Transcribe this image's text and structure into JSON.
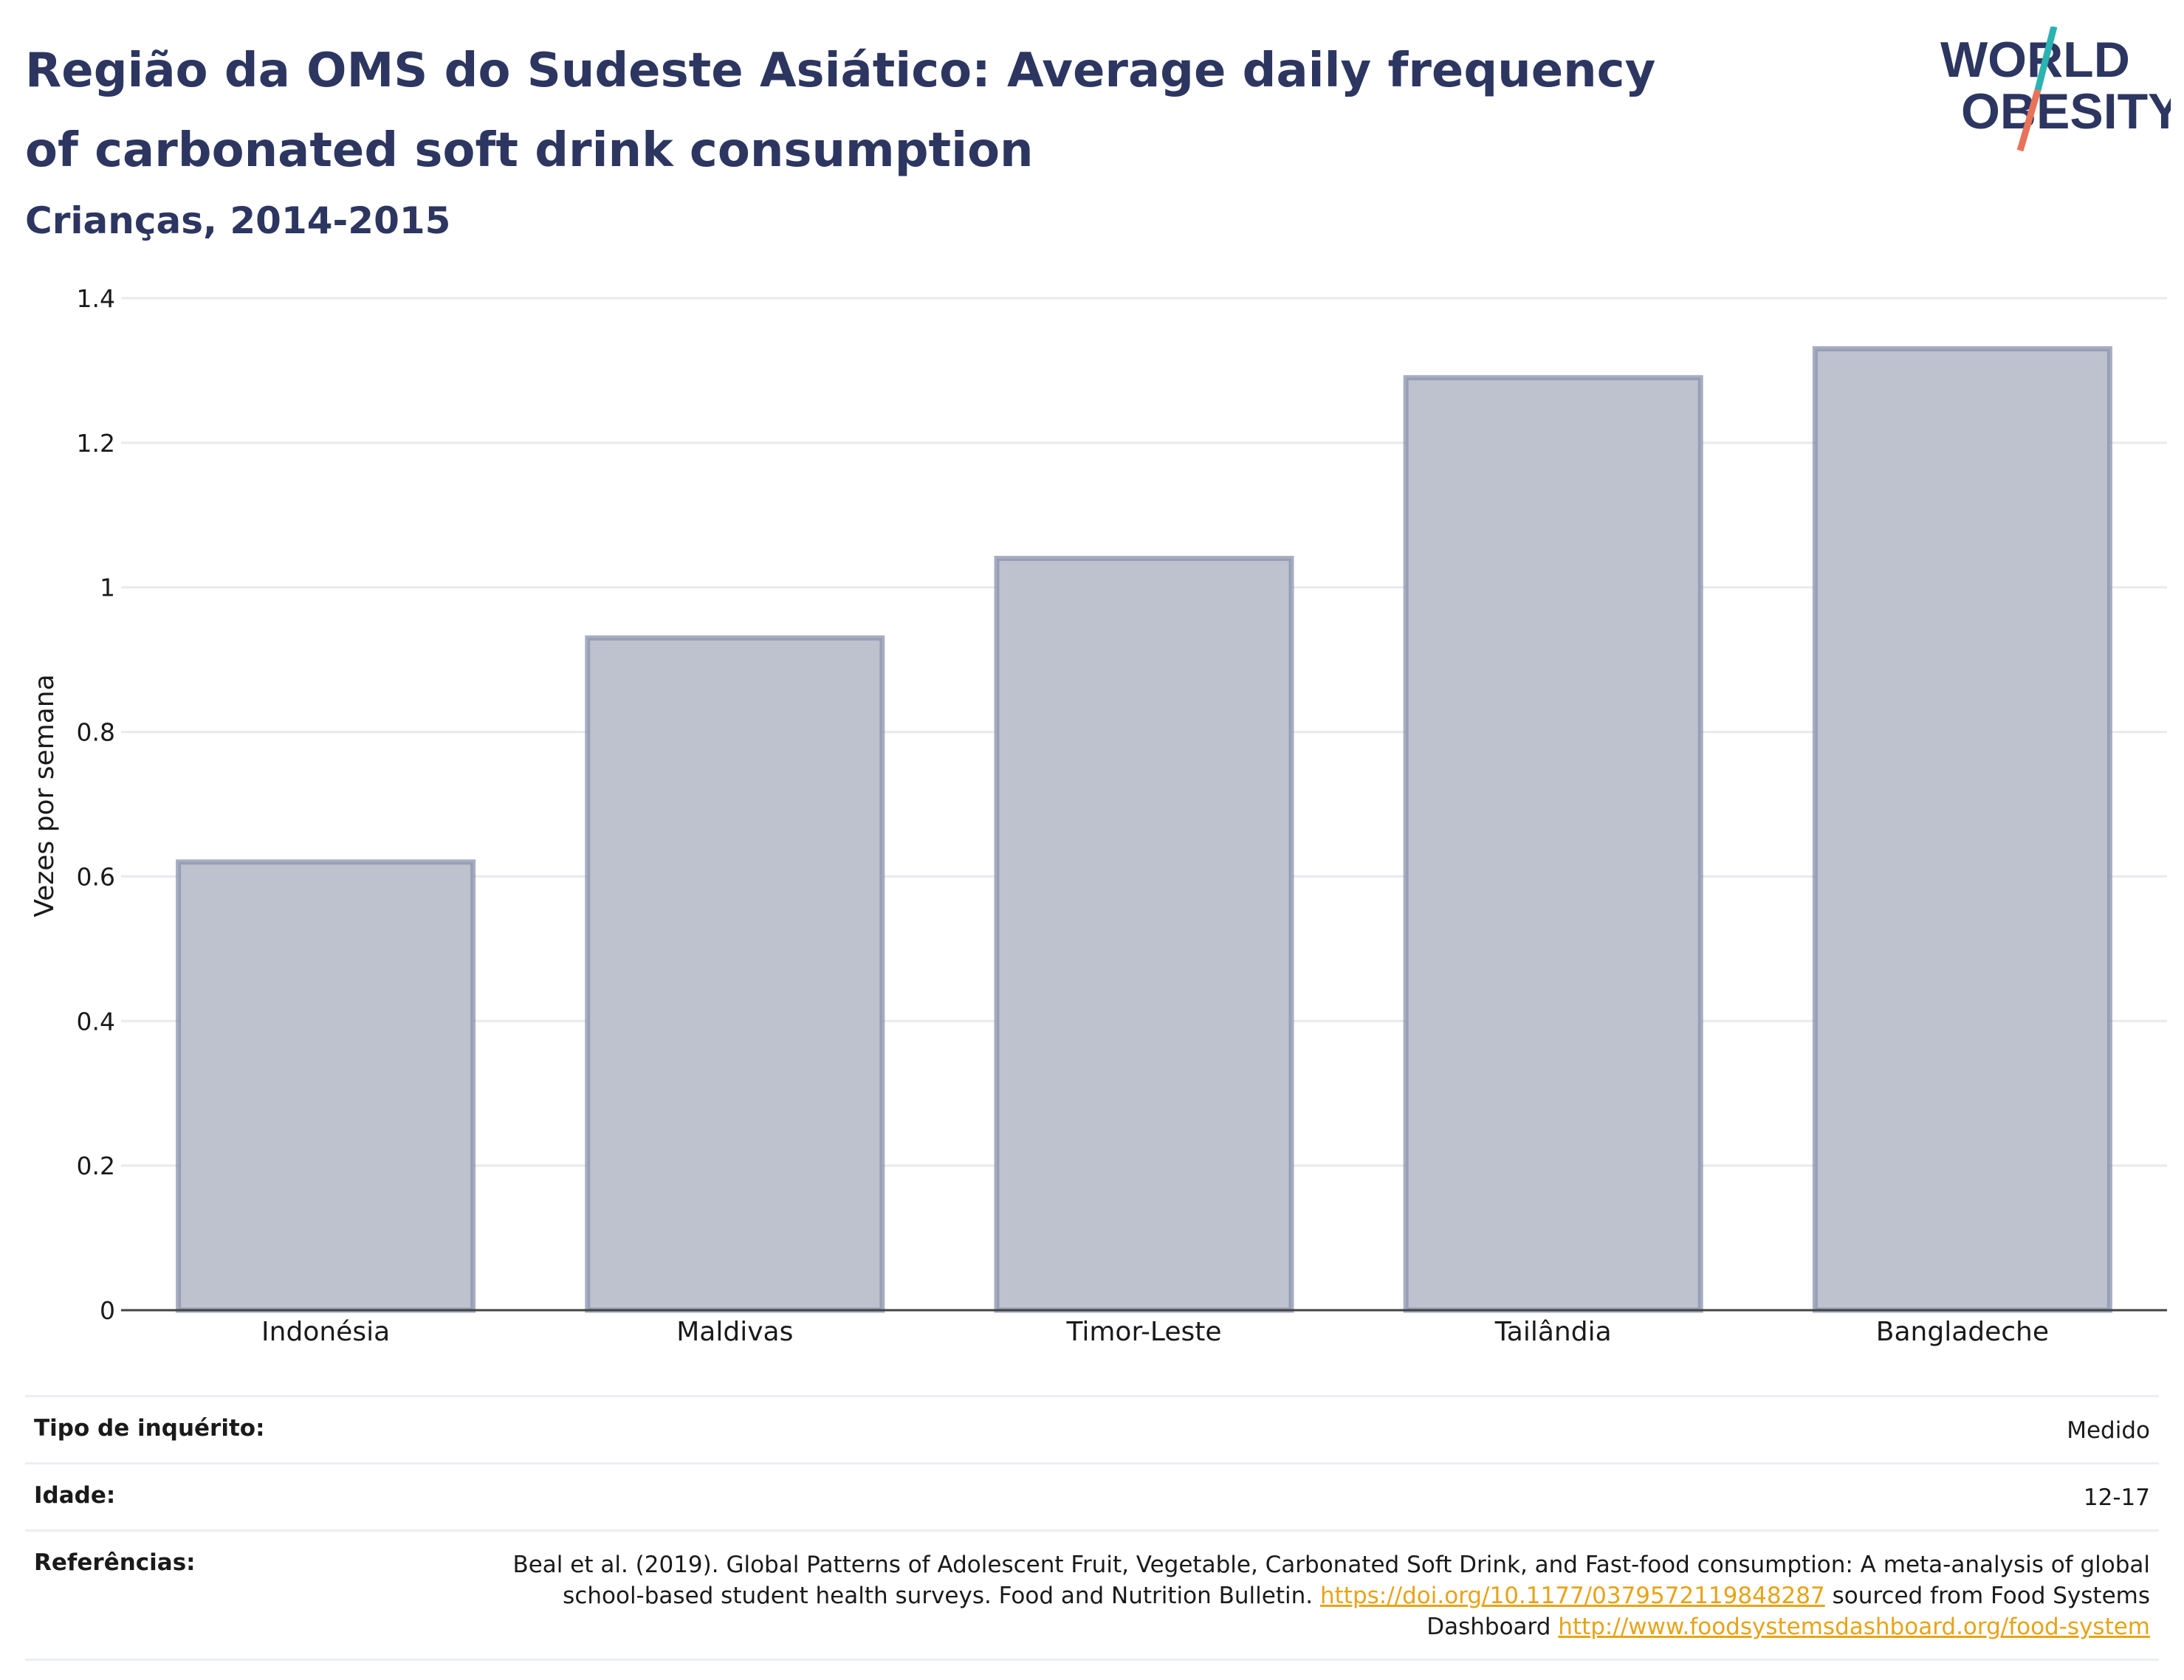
{
  "header": {
    "title": "Região da OMS do Sudeste Asiático: Average daily frequency of carbonated soft drink consumption",
    "subtitle": "Crianças, 2014-2015"
  },
  "logo": {
    "line1": "WORLD",
    "line2": "OBESITY",
    "accent_teal": "#2bb3b1",
    "accent_coral": "#e8735a"
  },
  "chart_data": {
    "type": "bar",
    "categories": [
      "Indonésia",
      "Maldivas",
      "Timor-Leste",
      "Tailândia",
      "Bangladeche"
    ],
    "values": [
      0.62,
      0.93,
      1.04,
      1.29,
      1.33
    ],
    "ylabel": "Vezes por semana",
    "ylim": [
      0,
      1.4
    ],
    "yticks": [
      "0",
      "0.2",
      "0.4",
      "0.6",
      "0.8",
      "1",
      "1.2",
      "1.4"
    ],
    "grid": true,
    "bar_fill": "#bec2ce",
    "bar_stroke": "#8a93ad"
  },
  "info": {
    "survey_type_label": "Tipo de inquérito:",
    "survey_type_value": "Medido",
    "age_label": "Idade:",
    "age_value": "12-17",
    "references_label": "Referências:",
    "references_text_1": "Beal et al. (2019). Global Patterns of Adolescent Fruit, Vegetable, Carbonated Soft Drink, and Fast-food consumption: A meta-analysis of global school-based student health surveys. Food and Nutrition Bulletin. ",
    "references_link_1": "https://doi.org/10.1177/0379572119848287",
    "references_text_2": " sourced from Food Systems Dashboard ",
    "references_link_2": "http://www.foodsystemsdashboard.org/food-system"
  }
}
